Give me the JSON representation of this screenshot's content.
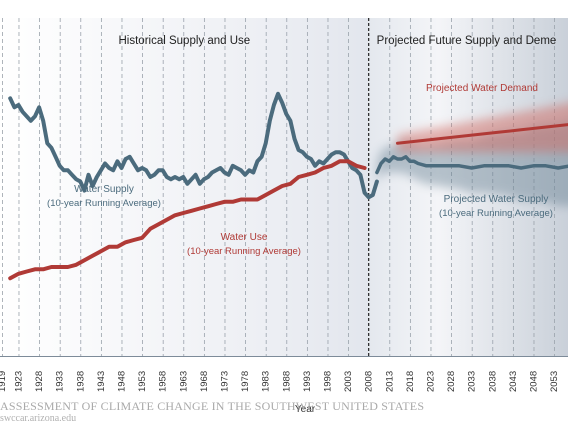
{
  "chart_data": {
    "type": "line",
    "xlabel": "Year",
    "ylabel": "",
    "x_ticks": [
      "1919",
      "1923",
      "1928",
      "1933",
      "1938",
      "1943",
      "1948",
      "1953",
      "1958",
      "1963",
      "1968",
      "1973",
      "1978",
      "1983",
      "1988",
      "1993",
      "1998",
      "2003",
      "2008",
      "2013",
      "2018",
      "2023",
      "2028",
      "2033",
      "2038",
      "2043",
      "2048",
      "2053"
    ],
    "xlim": [
      1917,
      2060
    ],
    "ylim": [
      0,
      100
    ],
    "grid": "vertical dashed",
    "divider_year": 2008,
    "section_labels": {
      "historical": "Historical Supply and Use",
      "projected": "Projected Future Supply and Deme"
    },
    "annotations": {
      "water_supply": [
        "Water Supply",
        "(10-year Running Average)"
      ],
      "water_use": [
        "Water Use",
        "(10-year Running Average)"
      ],
      "projected_demand": [
        "Projected Water Demand"
      ],
      "projected_supply": [
        "Projected Water Supply",
        "(10-year Running Average)"
      ]
    },
    "series": [
      {
        "name": "Water Supply (10-year Running Average)",
        "color": "#4b6b7d",
        "x": [
          1921,
          1922,
          1923,
          1924,
          1925,
          1926,
          1927,
          1928,
          1929,
          1930,
          1931,
          1932,
          1933,
          1934,
          1935,
          1936,
          1937,
          1938,
          1939,
          1940,
          1941,
          1942,
          1943,
          1944,
          1945,
          1946,
          1947,
          1948,
          1949,
          1950,
          1951,
          1952,
          1953,
          1954,
          1955,
          1956,
          1957,
          1958,
          1959,
          1960,
          1961,
          1962,
          1963,
          1964,
          1965,
          1966,
          1967,
          1968,
          1969,
          1970,
          1971,
          1972,
          1973,
          1974,
          1975,
          1976,
          1977,
          1978,
          1979,
          1980,
          1981,
          1982,
          1983,
          1984,
          1985,
          1986,
          1987,
          1988,
          1989,
          1990,
          1991,
          1992,
          1993,
          1994,
          1995,
          1996,
          1997,
          1998,
          1999,
          2000,
          2001,
          2002,
          2003,
          2004,
          2005,
          2006,
          2007,
          2008,
          2009,
          2010
        ],
        "values": [
          83,
          79,
          80,
          77,
          75,
          73,
          75,
          79,
          73,
          63,
          61,
          57,
          53,
          51,
          51,
          49,
          47,
          46,
          42,
          49,
          44,
          48,
          51,
          54,
          52,
          51,
          55,
          52,
          56,
          57,
          54,
          51,
          52,
          51,
          48,
          49,
          51,
          51,
          48,
          47,
          48,
          47,
          48,
          45,
          47,
          49,
          45,
          47,
          48,
          50,
          51,
          52,
          50,
          49,
          53,
          52,
          51,
          49,
          51,
          50,
          55,
          57,
          63,
          73,
          80,
          85,
          81,
          76,
          73,
          65,
          60,
          59,
          57,
          56,
          53,
          55,
          54,
          56,
          58,
          59,
          59,
          58,
          55,
          52,
          51,
          49,
          41,
          39,
          40,
          46
        ]
      },
      {
        "name": "Water Use (10-year Running Average)",
        "color": "#b03a36",
        "x": [
          1921,
          1923,
          1925,
          1927,
          1929,
          1931,
          1933,
          1935,
          1937,
          1939,
          1941,
          1943,
          1945,
          1947,
          1949,
          1951,
          1953,
          1955,
          1957,
          1959,
          1961,
          1963,
          1965,
          1967,
          1969,
          1971,
          1973,
          1975,
          1977,
          1979,
          1981,
          1983,
          1985,
          1987,
          1989,
          1991,
          1993,
          1995,
          1997,
          1999,
          2001,
          2003,
          2005,
          2007
        ],
        "values": [
          3,
          5,
          6,
          7,
          7,
          8,
          8,
          8,
          9,
          11,
          13,
          15,
          17,
          17,
          19,
          20,
          21,
          25,
          27,
          29,
          31,
          32,
          33,
          34,
          35,
          36,
          37,
          37,
          38,
          38,
          38,
          40,
          42,
          44,
          45,
          48,
          49,
          50,
          52,
          53,
          55,
          55,
          53,
          52
        ]
      },
      {
        "name": "Projected Water Demand",
        "color": "#b03a36",
        "x": [
          2015,
          2020,
          2025,
          2030,
          2035,
          2040,
          2045,
          2050,
          2055,
          2060
        ],
        "values": [
          63,
          64,
          65,
          66,
          67,
          68,
          69,
          70,
          71,
          72
        ]
      },
      {
        "name": "Projected Water Supply (10-year Running Average)",
        "color": "#4b6b7d",
        "x": [
          2010,
          2011,
          2012,
          2013,
          2014,
          2015,
          2016,
          2017,
          2018,
          2019,
          2020,
          2022,
          2024,
          2026,
          2028,
          2030,
          2033,
          2036,
          2039,
          2042,
          2045,
          2048,
          2051,
          2054,
          2057,
          2060
        ],
        "values": [
          50,
          54,
          56,
          55,
          57,
          56,
          56,
          57,
          55,
          55,
          54,
          53,
          53,
          53,
          53,
          53,
          52,
          53,
          53,
          53,
          52,
          53,
          53,
          52,
          53,
          52
        ]
      }
    ]
  },
  "credit": {
    "title": "ASSESSMENT OF CLIMATE CHANGE IN THE SOUTHWEST UNITED STATES",
    "url": "swccar.arizona.edu"
  }
}
